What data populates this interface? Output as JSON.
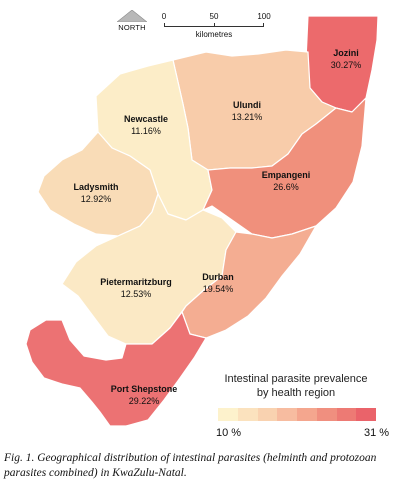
{
  "north": {
    "label": "NORTH",
    "icon": "north-arrow-icon"
  },
  "scale": {
    "ticks": [
      "0",
      "50",
      "100"
    ],
    "unit": "kilometres"
  },
  "regions": [
    {
      "name": "Jozini",
      "value": "30.27%",
      "color": "#ec6a6c"
    },
    {
      "name": "Ulundi",
      "value": "13.21%",
      "color": "#f8ccaa"
    },
    {
      "name": "Newcastle",
      "value": "11.16%",
      "color": "#fcedc8"
    },
    {
      "name": "Empangeni",
      "value": "26.6%",
      "color": "#f0907c"
    },
    {
      "name": "Ladysmith",
      "value": "12.92%",
      "color": "#f9dcb7"
    },
    {
      "name": "Pietermaritzburg",
      "value": "12.53%",
      "color": "#fbe9c5"
    },
    {
      "name": "Durban",
      "value": "19.54%",
      "color": "#f4ad92"
    },
    {
      "name": "Port Shepstone",
      "value": "29.22%",
      "color": "#ec7273"
    }
  ],
  "legend": {
    "title_line1": "Intestinal parasite prevalence",
    "title_line2": "by health region",
    "min": "10 %",
    "max": "31 %",
    "colors": [
      "#fdf2cc",
      "#fbe2be",
      "#f9d2b0",
      "#f7bca0",
      "#f4a68e",
      "#f08f7f",
      "#ed7a74",
      "#ea636a"
    ]
  },
  "caption": "Fig. 1. Geographical distribution of intestinal parasites (helminth and protozoan parasites combined) in KwaZulu-Natal."
}
